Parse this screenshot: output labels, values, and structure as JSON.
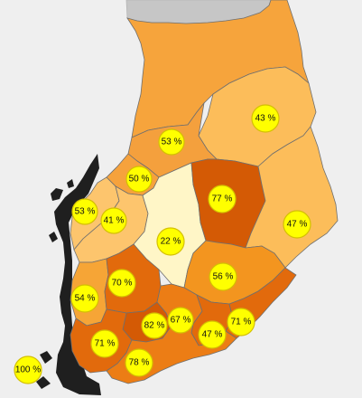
{
  "map": {
    "colors": {
      "background": "#efefef",
      "neighbor_land": "#c6c6c6",
      "marker_fill": "#ffff00",
      "outline": "#6f6f6f",
      "coastline": "#1f1f1f"
    },
    "regions": [
      {
        "id": "lapland",
        "color": "#f6a43c"
      },
      {
        "id": "north-ostrobothnia",
        "color": "#f4a03d"
      },
      {
        "id": "kainuu",
        "color": "#fcbd5a"
      },
      {
        "id": "central-ostrobothnia",
        "color": "#f6a23c"
      },
      {
        "id": "ostrobothnia",
        "color": "#fdc56d"
      },
      {
        "id": "south-ostrobothnia",
        "color": "#fdc56d"
      },
      {
        "id": "central-finland",
        "color": "#fff6c7"
      },
      {
        "id": "north-savo",
        "color": "#d45a05"
      },
      {
        "id": "north-karelia",
        "color": "#fcbd5a"
      },
      {
        "id": "south-savo",
        "color": "#f3951f"
      },
      {
        "id": "satakunta",
        "color": "#f6a536"
      },
      {
        "id": "pirkanmaa",
        "color": "#e26a0c"
      },
      {
        "id": "kanta-hame",
        "color": "#d45a05"
      },
      {
        "id": "paijat-hame",
        "color": "#ec7d15"
      },
      {
        "id": "kymenlaakso",
        "color": "#e26a0c"
      },
      {
        "id": "south-karelia",
        "color": "#e26a0c"
      },
      {
        "id": "southwest-finland",
        "color": "#e26a0c"
      },
      {
        "id": "uusimaa",
        "color": "#ec7d15"
      },
      {
        "id": "aland",
        "color": "#efefef"
      }
    ],
    "markers": [
      {
        "id": "lapland",
        "label": "53 %"
      },
      {
        "id": "kainuu",
        "label": "43 %"
      },
      {
        "id": "central-ostrobothnia",
        "label": "50 %"
      },
      {
        "id": "north-savo",
        "label": "77 %"
      },
      {
        "id": "ostrobothnia",
        "label": "53 %"
      },
      {
        "id": "south-ostrobothnia",
        "label": "41 %"
      },
      {
        "id": "north-karelia",
        "label": "47 %"
      },
      {
        "id": "central-finland",
        "label": "22 %"
      },
      {
        "id": "pirkanmaa",
        "label": "70 %"
      },
      {
        "id": "south-savo",
        "label": "56 %"
      },
      {
        "id": "satakunta",
        "label": "54 %"
      },
      {
        "id": "kanta-hame",
        "label": "82 %"
      },
      {
        "id": "paijat-hame",
        "label": "67 %"
      },
      {
        "id": "kymenlaakso",
        "label": "47 %"
      },
      {
        "id": "south-karelia",
        "label": "71 %"
      },
      {
        "id": "southwest-finland",
        "label": "71 %"
      },
      {
        "id": "uusimaa",
        "label": "78 %"
      },
      {
        "id": "aland",
        "label": "100 %"
      }
    ]
  }
}
